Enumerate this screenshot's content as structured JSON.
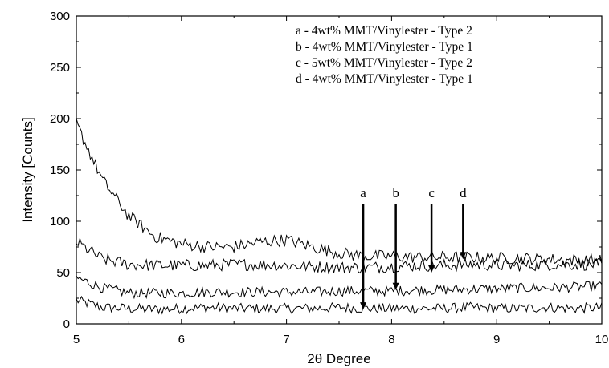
{
  "chart_data": {
    "type": "line",
    "title": "",
    "xlabel": "2θ Degree",
    "ylabel": "Intensity [Counts]",
    "xlim": [
      5,
      10
    ],
    "ylim": [
      0,
      300
    ],
    "x_ticks": [
      "5",
      "6",
      "7",
      "8",
      "9",
      "10"
    ],
    "y_ticks": [
      "0",
      "50",
      "100",
      "150",
      "200",
      "250",
      "300"
    ],
    "legend_position": "top-right",
    "legend": [
      "a - 4wt% MMT/Vinylester - Type 2",
      "b - 4wt% MMT/Vinylester - Type 1",
      "c - 5wt% MMT/Vinylester - Type 2",
      "d - 4wt% MMT/Vinylester - Type 1"
    ],
    "x": [
      5.0,
      5.25,
      5.5,
      5.75,
      6.0,
      6.25,
      6.5,
      6.75,
      7.0,
      7.25,
      7.5,
      7.75,
      8.0,
      8.25,
      8.5,
      8.75,
      9.0,
      9.25,
      9.5,
      9.75,
      10.0
    ],
    "series": [
      {
        "values": [
          23,
          16,
          15,
          14,
          15,
          16,
          15,
          15,
          15,
          15,
          16,
          15,
          15,
          15,
          15,
          16,
          15,
          15,
          16,
          15,
          16
        ],
        "noise": 5
      },
      {
        "values": [
          45,
          35,
          30,
          30,
          30,
          31,
          31,
          31,
          31,
          31,
          32,
          32,
          32,
          33,
          33,
          34,
          34,
          35,
          35,
          36,
          37
        ],
        "noise": 5
      },
      {
        "values": [
          80,
          63,
          58,
          57,
          57,
          57,
          58,
          58,
          57,
          56,
          55,
          55,
          56,
          57,
          57,
          58,
          57,
          57,
          58,
          58,
          58
        ],
        "noise": 6
      },
      {
        "values": [
          195,
          140,
          105,
          85,
          78,
          75,
          75,
          80,
          82,
          75,
          69,
          66,
          66,
          65,
          65,
          65,
          64,
          64,
          63,
          62,
          62
        ],
        "noise": 6
      }
    ],
    "annotations": [
      {
        "label": "a",
        "x": 7.73,
        "y_from": 117,
        "y_to": 14
      },
      {
        "label": "b",
        "x": 8.04,
        "y_from": 117,
        "y_to": 33
      },
      {
        "label": "c",
        "x": 8.38,
        "y_from": 117,
        "y_to": 50
      },
      {
        "label": "d",
        "x": 8.68,
        "y_from": 117,
        "y_to": 63
      }
    ],
    "grid": false
  }
}
